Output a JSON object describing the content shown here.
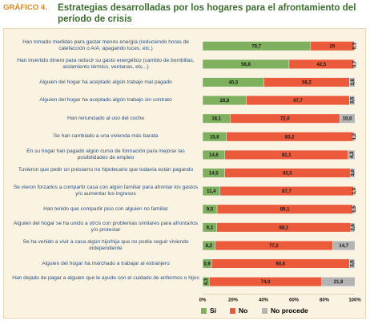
{
  "figure_label": "GRÁFICO 4.",
  "title": "Estrategias desarrolladas por los hogares para el afrontamiento del período de crisis",
  "colors": {
    "si": "#7fb05e",
    "no": "#ea5a3b",
    "no_procede": "#b4b4b4",
    "category_text": "#2a4f7f",
    "title": "#3b6e2c",
    "label": "#d9882b"
  },
  "chart_data": {
    "type": "bar",
    "orientation": "horizontal",
    "stacked": true,
    "categories": [
      "Han tomado medidas para gastar menos energía (reduciendo horas de calefacción o A/A, apagando luces, etc.)",
      "Han invertido dinero para reducir su gasto energético (cambio de bombillas, aislamiento térmico, ventanas, etc...)",
      "Alguien del hogar ha aceptado algún trabajo mal pagado",
      "Alguien del hogar ha aceptado algún trabajo sin contrato",
      "Han renunciado al uso del coche",
      "Se han cambiado a una vivienda más barata",
      "En su hogar han pagado algún curso de formación para mejorar las posibilidades de empleo",
      "Tuvieron que pedir un préstamo no hipotecario que todavía están pagando",
      "Se vieron forzados a compartir casa con algún familiar para afrontar los gastos y/o aumentar los ingresos",
      "Han tenido que compartir piso con alguien no familiar",
      "Alguien del hogar se ha unido a otros con problemas similares para afrontarlos y/o protestar",
      "Se ha venido a vivir a casa algún hijo/hija que no podía seguir viviendo independiente",
      "Alguien del hogar ha marchado a trabajar al extranjero",
      "Han dejado de pagar a alguien que le ayude con el cuidado de enfermos o hijos"
    ],
    "series": [
      {
        "name": "Sí",
        "color": "#7fb05e",
        "values": [
          70.7,
          56.8,
          40.3,
          28.8,
          18.1,
          15.6,
          14.6,
          14.5,
          11.4,
          9.5,
          9.3,
          8.2,
          5.9,
          4.3
        ]
      },
      {
        "name": "No",
        "color": "#ea5a3b",
        "values": [
          29,
          42.5,
          56.2,
          67.7,
          72.0,
          83.2,
          81.1,
          82.5,
          87.7,
          89.1,
          88.1,
          77.2,
          90.6,
          74.0
        ]
      },
      {
        "name": "No procede",
        "color": "#b4b4b4",
        "values": [
          0.3,
          0.7,
          3.6,
          3.5,
          10.0,
          1.2,
          4.3,
          3.0,
          1.0,
          1.5,
          2.6,
          14.7,
          3.5,
          21.8
        ]
      }
    ],
    "value_labels": [
      [
        "70,7",
        "29",
        "0,3"
      ],
      [
        "56,8",
        "42,5",
        "0,7"
      ],
      [
        "40,3",
        "56,2",
        "3,6"
      ],
      [
        "28,8",
        "67,7",
        "3,5"
      ],
      [
        "18,1",
        "72,0",
        "10,0"
      ],
      [
        "15,6",
        "83,2",
        "1,2"
      ],
      [
        "14,6",
        "81,1",
        "4,3"
      ],
      [
        "14,5",
        "82,5",
        "3,0"
      ],
      [
        "11,4",
        "87,7",
        "1,0"
      ],
      [
        "9,5",
        "89,1",
        "1,5"
      ],
      [
        "9,3",
        "88,1",
        "2,6"
      ],
      [
        "8,2",
        "77,2",
        "14,7"
      ],
      [
        "5,9",
        "90,6",
        "3,5"
      ],
      [
        "4,3",
        "74,0",
        "21,8"
      ]
    ],
    "x_ticks": [
      "0%",
      "20%",
      "40%",
      "60%",
      "80%",
      "100%"
    ],
    "xlim": [
      0,
      100
    ],
    "grid": false,
    "legend_position": "bottom"
  }
}
